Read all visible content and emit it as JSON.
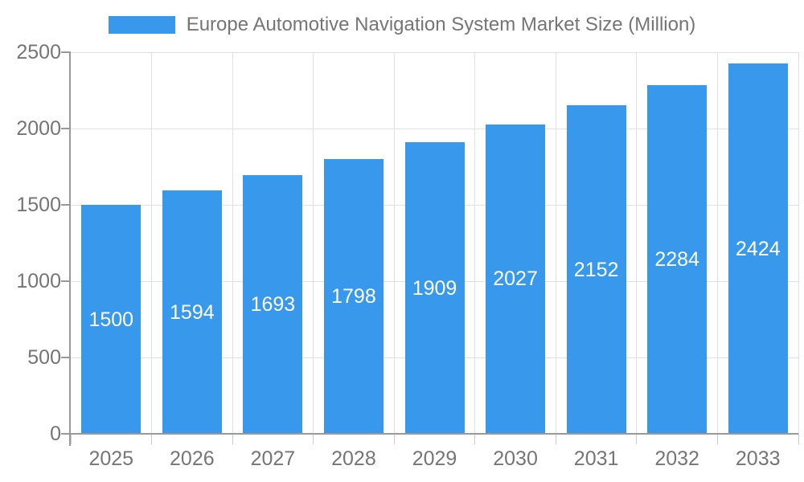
{
  "chart_data": {
    "type": "bar",
    "title": "Europe Automotive Navigation System Market Size (Million)",
    "categories": [
      "2025",
      "2026",
      "2027",
      "2028",
      "2029",
      "2030",
      "2031",
      "2032",
      "2033"
    ],
    "values": [
      1500,
      1594,
      1693,
      1798,
      1909,
      2027,
      2152,
      2284,
      2424
    ],
    "xlabel": "",
    "ylabel": "",
    "ylim": [
      0,
      2500
    ],
    "yticks": [
      0,
      500,
      1000,
      1500,
      2000,
      2500
    ],
    "grid": true,
    "legend_position": "top",
    "value_labels": "inside-center",
    "colors": {
      "bar": "#3898ec",
      "value_label": "#ffffff",
      "axis_text": "#757575",
      "title_text": "#757575",
      "gridline": "#e0e0e0",
      "axis_line": "#999999",
      "minor_tick": "#cccccc"
    }
  }
}
